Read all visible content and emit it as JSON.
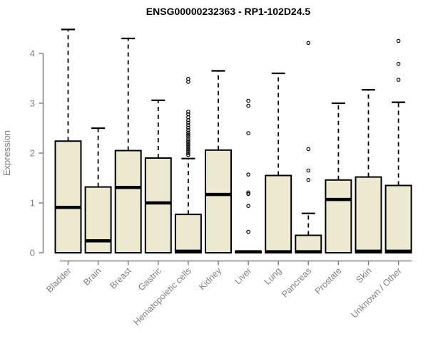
{
  "chart_data": {
    "type": "boxplot",
    "title": "ENSG00000232363 - RP1-102D24.5",
    "ylabel": "Expression",
    "xlabel": "",
    "ylim": [
      0,
      4
    ],
    "yticks": [
      0,
      1,
      2,
      3,
      4
    ],
    "grid": false,
    "legend": "none",
    "categories": [
      "Bladder",
      "Brain",
      "Breast",
      "Gastric",
      "Hematopoietic cells",
      "Kidney",
      "Liver",
      "Lung",
      "Pancreas",
      "Prostate",
      "Skin",
      "Unknown / Other"
    ],
    "boxes": [
      {
        "category": "Bladder",
        "whisker_low": 0,
        "q1": 0,
        "median": 0.91,
        "q3": 2.24,
        "whisker_high": 4.48,
        "outliers": []
      },
      {
        "category": "Brain",
        "whisker_low": 0,
        "q1": 0,
        "median": 0.24,
        "q3": 1.32,
        "whisker_high": 2.5,
        "outliers": []
      },
      {
        "category": "Breast",
        "whisker_low": 0,
        "q1": 0,
        "median": 1.31,
        "q3": 2.05,
        "whisker_high": 4.3,
        "outliers": []
      },
      {
        "category": "Gastric",
        "whisker_low": 0,
        "q1": 0,
        "median": 1.0,
        "q3": 1.9,
        "whisker_high": 3.06,
        "outliers": []
      },
      {
        "category": "Hematopoietic cells",
        "whisker_low": 0,
        "q1": 0,
        "median": 0.03,
        "q3": 0.77,
        "whisker_high": 1.89,
        "outliers": [
          1.96,
          2.0,
          2.04,
          2.08,
          2.12,
          2.16,
          2.2,
          2.24,
          2.28,
          2.33,
          2.37,
          2.41,
          2.46,
          2.51,
          2.56,
          2.61,
          2.66,
          2.72,
          2.78,
          2.83,
          3.43,
          3.49
        ]
      },
      {
        "category": "Kidney",
        "whisker_low": 0,
        "q1": 0,
        "median": 1.17,
        "q3": 2.06,
        "whisker_high": 3.65,
        "outliers": []
      },
      {
        "category": "Liver",
        "whisker_low": 0,
        "q1": 0,
        "median": 0.02,
        "q3": 0.03,
        "whisker_high": 0.03,
        "outliers": [
          3.05,
          2.95,
          2.4,
          1.57,
          1.21,
          1.18,
          0.94,
          0.42
        ]
      },
      {
        "category": "Lung",
        "whisker_low": 0,
        "q1": 0,
        "median": 0.02,
        "q3": 1.55,
        "whisker_high": 3.6,
        "outliers": []
      },
      {
        "category": "Pancreas",
        "whisker_low": 0,
        "q1": 0,
        "median": 0.02,
        "q3": 0.35,
        "whisker_high": 0.79,
        "outliers": [
          4.21,
          2.08,
          1.65,
          1.46
        ]
      },
      {
        "category": "Prostate",
        "whisker_low": 0,
        "q1": 0,
        "median": 1.07,
        "q3": 1.46,
        "whisker_high": 3.0,
        "outliers": []
      },
      {
        "category": "Skin",
        "whisker_low": 0,
        "q1": 0,
        "median": 0.03,
        "q3": 1.52,
        "whisker_high": 3.27,
        "outliers": []
      },
      {
        "category": "Unknown / Other",
        "whisker_low": 0,
        "q1": 0,
        "median": 0.03,
        "q3": 1.35,
        "whisker_high": 3.02,
        "outliers": [
          4.25,
          3.79,
          3.47
        ]
      }
    ],
    "colors": {
      "box_fill": "#EDE8D0",
      "box_border": "#000000",
      "median": "#000000",
      "whisker": "#000000",
      "outlier": "#000000",
      "axis": "#808080",
      "tick_label": "#808080",
      "title": "#000000",
      "background": "#FFFFFF"
    }
  }
}
